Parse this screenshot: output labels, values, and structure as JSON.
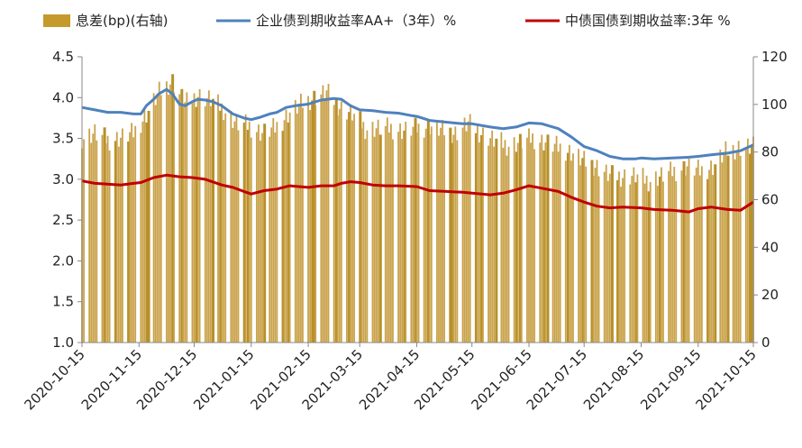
{
  "chart_data": {
    "type": "bar+line",
    "title": "",
    "legend": [
      {
        "label": "息差(bp)(右轴)",
        "color": "#C49A2C",
        "kind": "bar"
      },
      {
        "label": "企业债到期收益率AA+（3年）%",
        "color": "#4F81BD",
        "kind": "line"
      },
      {
        "label": "中债国债到期收益率:3年 %",
        "color": "#C00000",
        "kind": "line"
      }
    ],
    "legend_position": "top",
    "left_axis": {
      "min": 1.0,
      "max": 4.5,
      "ticks": [
        "1.0",
        "1.5",
        "2.0",
        "2.5",
        "3.0",
        "3.5",
        "4.0",
        "4.5"
      ]
    },
    "right_axis": {
      "min": 0,
      "max": 120,
      "ticks": [
        "0",
        "20",
        "40",
        "60",
        "80",
        "100",
        "120"
      ]
    },
    "x_labels": [
      "2020-10-15",
      "2020-11-15",
      "2020-12-15",
      "2021-01-15",
      "2021-02-15",
      "2021-03-15",
      "2021-04-15",
      "2021-05-15",
      "2021-06-15",
      "2021-07-15",
      "2021-08-15",
      "2021-09-15",
      "2021-10-15"
    ],
    "x_range": [
      "2020-10-15",
      "2021-10-15"
    ],
    "grid": false,
    "series": [
      {
        "name": "企业债到期收益率AA+（3年）%",
        "axis": "left",
        "points": [
          [
            "2020-10-15",
            3.88
          ],
          [
            "2020-10-22",
            3.85
          ],
          [
            "2020-10-29",
            3.82
          ],
          [
            "2020-11-05",
            3.82
          ],
          [
            "2020-11-12",
            3.8
          ],
          [
            "2020-11-16",
            3.8
          ],
          [
            "2020-11-19",
            3.9
          ],
          [
            "2020-11-23",
            3.98
          ],
          [
            "2020-11-26",
            4.05
          ],
          [
            "2020-11-30",
            4.1
          ],
          [
            "2020-12-03",
            4.05
          ],
          [
            "2020-12-07",
            3.92
          ],
          [
            "2020-12-10",
            3.9
          ],
          [
            "2020-12-14",
            3.95
          ],
          [
            "2020-12-17",
            3.98
          ],
          [
            "2020-12-21",
            3.97
          ],
          [
            "2020-12-25",
            3.95
          ],
          [
            "2020-12-30",
            3.9
          ],
          [
            "2021-01-05",
            3.8
          ],
          [
            "2021-01-11",
            3.75
          ],
          [
            "2021-01-15",
            3.73
          ],
          [
            "2021-01-20",
            3.76
          ],
          [
            "2021-01-25",
            3.8
          ],
          [
            "2021-01-29",
            3.82
          ],
          [
            "2021-02-03",
            3.88
          ],
          [
            "2021-02-08",
            3.9
          ],
          [
            "2021-02-15",
            3.92
          ],
          [
            "2021-02-22",
            3.97
          ],
          [
            "2021-03-01",
            3.99
          ],
          [
            "2021-03-05",
            3.98
          ],
          [
            "2021-03-10",
            3.9
          ],
          [
            "2021-03-15",
            3.85
          ],
          [
            "2021-03-22",
            3.84
          ],
          [
            "2021-03-29",
            3.82
          ],
          [
            "2021-04-05",
            3.81
          ],
          [
            "2021-04-12",
            3.78
          ],
          [
            "2021-04-15",
            3.77
          ],
          [
            "2021-04-22",
            3.72
          ],
          [
            "2021-05-01",
            3.7
          ],
          [
            "2021-05-10",
            3.68
          ],
          [
            "2021-05-15",
            3.68
          ],
          [
            "2021-05-25",
            3.64
          ],
          [
            "2021-06-01",
            3.62
          ],
          [
            "2021-06-08",
            3.64
          ],
          [
            "2021-06-15",
            3.69
          ],
          [
            "2021-06-22",
            3.68
          ],
          [
            "2021-07-01",
            3.62
          ],
          [
            "2021-07-08",
            3.52
          ],
          [
            "2021-07-15",
            3.4
          ],
          [
            "2021-07-22",
            3.35
          ],
          [
            "2021-07-29",
            3.28
          ],
          [
            "2021-08-05",
            3.25
          ],
          [
            "2021-08-12",
            3.25
          ],
          [
            "2021-08-15",
            3.26
          ],
          [
            "2021-08-22",
            3.25
          ],
          [
            "2021-09-01",
            3.26
          ],
          [
            "2021-09-10",
            3.27
          ],
          [
            "2021-09-15",
            3.28
          ],
          [
            "2021-09-22",
            3.3
          ],
          [
            "2021-10-01",
            3.32
          ],
          [
            "2021-10-08",
            3.35
          ],
          [
            "2021-10-15",
            3.42
          ]
        ]
      },
      {
        "name": "中债国债到期收益率:3年 %",
        "axis": "left",
        "points": [
          [
            "2020-10-15",
            2.98
          ],
          [
            "2020-10-22",
            2.95
          ],
          [
            "2020-10-29",
            2.94
          ],
          [
            "2020-11-05",
            2.93
          ],
          [
            "2020-11-12",
            2.95
          ],
          [
            "2020-11-16",
            2.96
          ],
          [
            "2020-11-23",
            3.02
          ],
          [
            "2020-11-30",
            3.05
          ],
          [
            "2020-12-07",
            3.03
          ],
          [
            "2020-12-14",
            3.02
          ],
          [
            "2020-12-21",
            3.0
          ],
          [
            "2020-12-30",
            2.93
          ],
          [
            "2021-01-05",
            2.9
          ],
          [
            "2021-01-11",
            2.85
          ],
          [
            "2021-01-15",
            2.82
          ],
          [
            "2021-01-22",
            2.86
          ],
          [
            "2021-01-29",
            2.88
          ],
          [
            "2021-02-05",
            2.92
          ],
          [
            "2021-02-15",
            2.9
          ],
          [
            "2021-02-22",
            2.92
          ],
          [
            "2021-03-01",
            2.92
          ],
          [
            "2021-03-05",
            2.95
          ],
          [
            "2021-03-10",
            2.97
          ],
          [
            "2021-03-15",
            2.96
          ],
          [
            "2021-03-22",
            2.93
          ],
          [
            "2021-03-29",
            2.92
          ],
          [
            "2021-04-05",
            2.92
          ],
          [
            "2021-04-15",
            2.91
          ],
          [
            "2021-04-22",
            2.86
          ],
          [
            "2021-05-01",
            2.85
          ],
          [
            "2021-05-10",
            2.84
          ],
          [
            "2021-05-15",
            2.83
          ],
          [
            "2021-05-25",
            2.81
          ],
          [
            "2021-06-01",
            2.83
          ],
          [
            "2021-06-08",
            2.87
          ],
          [
            "2021-06-15",
            2.92
          ],
          [
            "2021-06-22",
            2.89
          ],
          [
            "2021-07-01",
            2.85
          ],
          [
            "2021-07-08",
            2.78
          ],
          [
            "2021-07-15",
            2.72
          ],
          [
            "2021-07-22",
            2.67
          ],
          [
            "2021-07-29",
            2.65
          ],
          [
            "2021-08-05",
            2.66
          ],
          [
            "2021-08-15",
            2.65
          ],
          [
            "2021-08-22",
            2.63
          ],
          [
            "2021-09-01",
            2.62
          ],
          [
            "2021-09-10",
            2.6
          ],
          [
            "2021-09-15",
            2.64
          ],
          [
            "2021-09-22",
            2.66
          ],
          [
            "2021-10-01",
            2.63
          ],
          [
            "2021-10-08",
            2.62
          ],
          [
            "2021-10-15",
            2.72
          ]
        ]
      },
      {
        "name": "息差(bp)(右轴)",
        "axis": "right",
        "note": "weekly approximations of daily bars",
        "points": [
          [
            "2020-10-15",
            86
          ],
          [
            "2020-10-22",
            88
          ],
          [
            "2020-10-29",
            85
          ],
          [
            "2020-11-05",
            86
          ],
          [
            "2020-11-12",
            88
          ],
          [
            "2020-11-19",
            96
          ],
          [
            "2020-11-26",
            105
          ],
          [
            "2020-12-03",
            110
          ],
          [
            "2020-12-10",
            100
          ],
          [
            "2020-12-17",
            104
          ],
          [
            "2020-12-24",
            102
          ],
          [
            "2020-12-31",
            98
          ],
          [
            "2021-01-07",
            92
          ],
          [
            "2021-01-14",
            91
          ],
          [
            "2021-01-21",
            88
          ],
          [
            "2021-01-28",
            90
          ],
          [
            "2021-02-04",
            96
          ],
          [
            "2021-02-11",
            100
          ],
          [
            "2021-02-18",
            103
          ],
          [
            "2021-02-25",
            105
          ],
          [
            "2021-03-04",
            99
          ],
          [
            "2021-03-11",
            96
          ],
          [
            "2021-03-18",
            90
          ],
          [
            "2021-03-25",
            90
          ],
          [
            "2021-04-01",
            90
          ],
          [
            "2021-04-08",
            89
          ],
          [
            "2021-04-15",
            90
          ],
          [
            "2021-04-22",
            91
          ],
          [
            "2021-04-29",
            89
          ],
          [
            "2021-05-06",
            88
          ],
          [
            "2021-05-13",
            92
          ],
          [
            "2021-05-20",
            88
          ],
          [
            "2021-05-27",
            85
          ],
          [
            "2021-06-03",
            83
          ],
          [
            "2021-06-10",
            84
          ],
          [
            "2021-06-17",
            86
          ],
          [
            "2021-06-24",
            84
          ],
          [
            "2021-07-01",
            82
          ],
          [
            "2021-07-08",
            80
          ],
          [
            "2021-07-15",
            76
          ],
          [
            "2021-07-22",
            74
          ],
          [
            "2021-07-29",
            70
          ],
          [
            "2021-08-05",
            70
          ],
          [
            "2021-08-12",
            70
          ],
          [
            "2021-08-19",
            68
          ],
          [
            "2021-08-26",
            70
          ],
          [
            "2021-09-02",
            72
          ],
          [
            "2021-09-09",
            74
          ],
          [
            "2021-09-16",
            72
          ],
          [
            "2021-09-23",
            74
          ],
          [
            "2021-09-30",
            80
          ],
          [
            "2021-10-07",
            82
          ],
          [
            "2021-10-14",
            82
          ]
        ]
      }
    ]
  }
}
